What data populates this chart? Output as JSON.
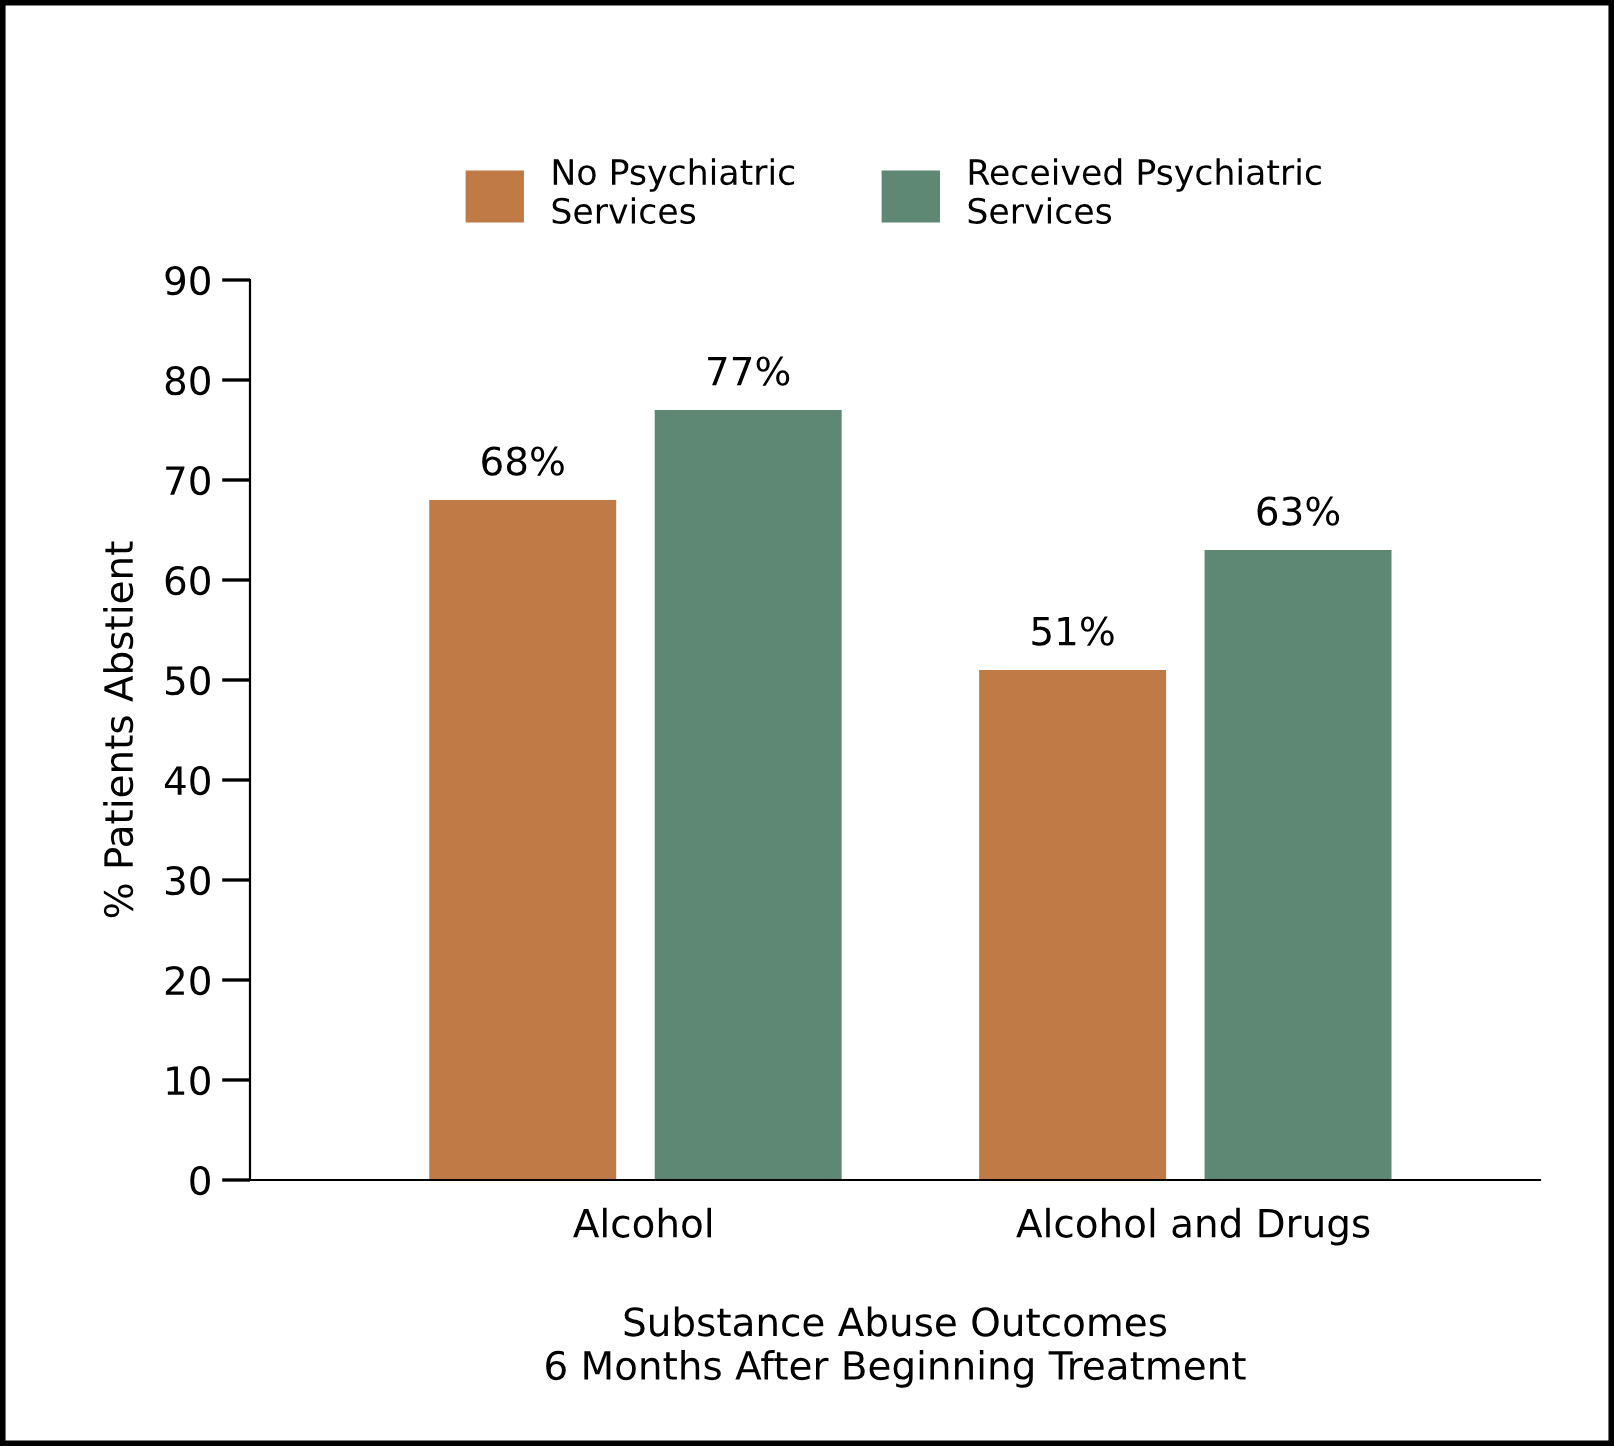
{
  "chart_data": {
    "type": "bar",
    "xlabel": "Substance Abuse Outcomes\n6 Months After Beginning Treatment",
    "ylabel": "% Patients Abstient",
    "categories": [
      "Alcohol",
      "Alcohol and Drugs"
    ],
    "series": [
      {
        "name": "No Psychiatric\nServices",
        "color": "#c07a45",
        "values": [
          68,
          51
        ],
        "value_labels": [
          "68%",
          "51%"
        ]
      },
      {
        "name": "Received Psychiatric\nServices",
        "color": "#5e8873",
        "values": [
          77,
          63
        ],
        "value_labels": [
          "77%",
          "63%"
        ]
      }
    ],
    "ylim": [
      0,
      90
    ],
    "yticks": [
      0,
      10,
      20,
      30,
      40,
      50,
      60,
      70,
      80,
      90
    ],
    "grid": false,
    "legend": "top"
  }
}
